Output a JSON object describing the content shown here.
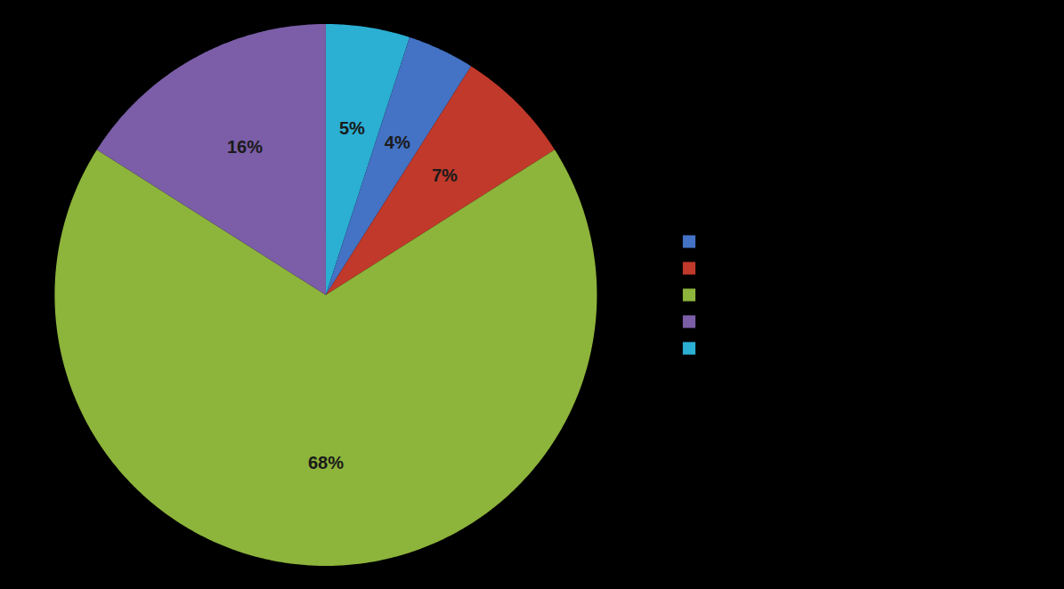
{
  "chart_data": {
    "type": "pie",
    "values": [
      5,
      4,
      7,
      68,
      16
    ],
    "value_labels": [
      "5%",
      "4%",
      "7%",
      "68%",
      "16%"
    ],
    "colors": [
      "#2bafd3",
      "#4472c4",
      "#c0392b",
      "#8db43b",
      "#7b5ea7"
    ],
    "data_labels": true,
    "legend": "right",
    "legend_colors": [
      "#4472c4",
      "#c0392b",
      "#8db43b",
      "#7b5ea7",
      "#2bafd3"
    ]
  }
}
